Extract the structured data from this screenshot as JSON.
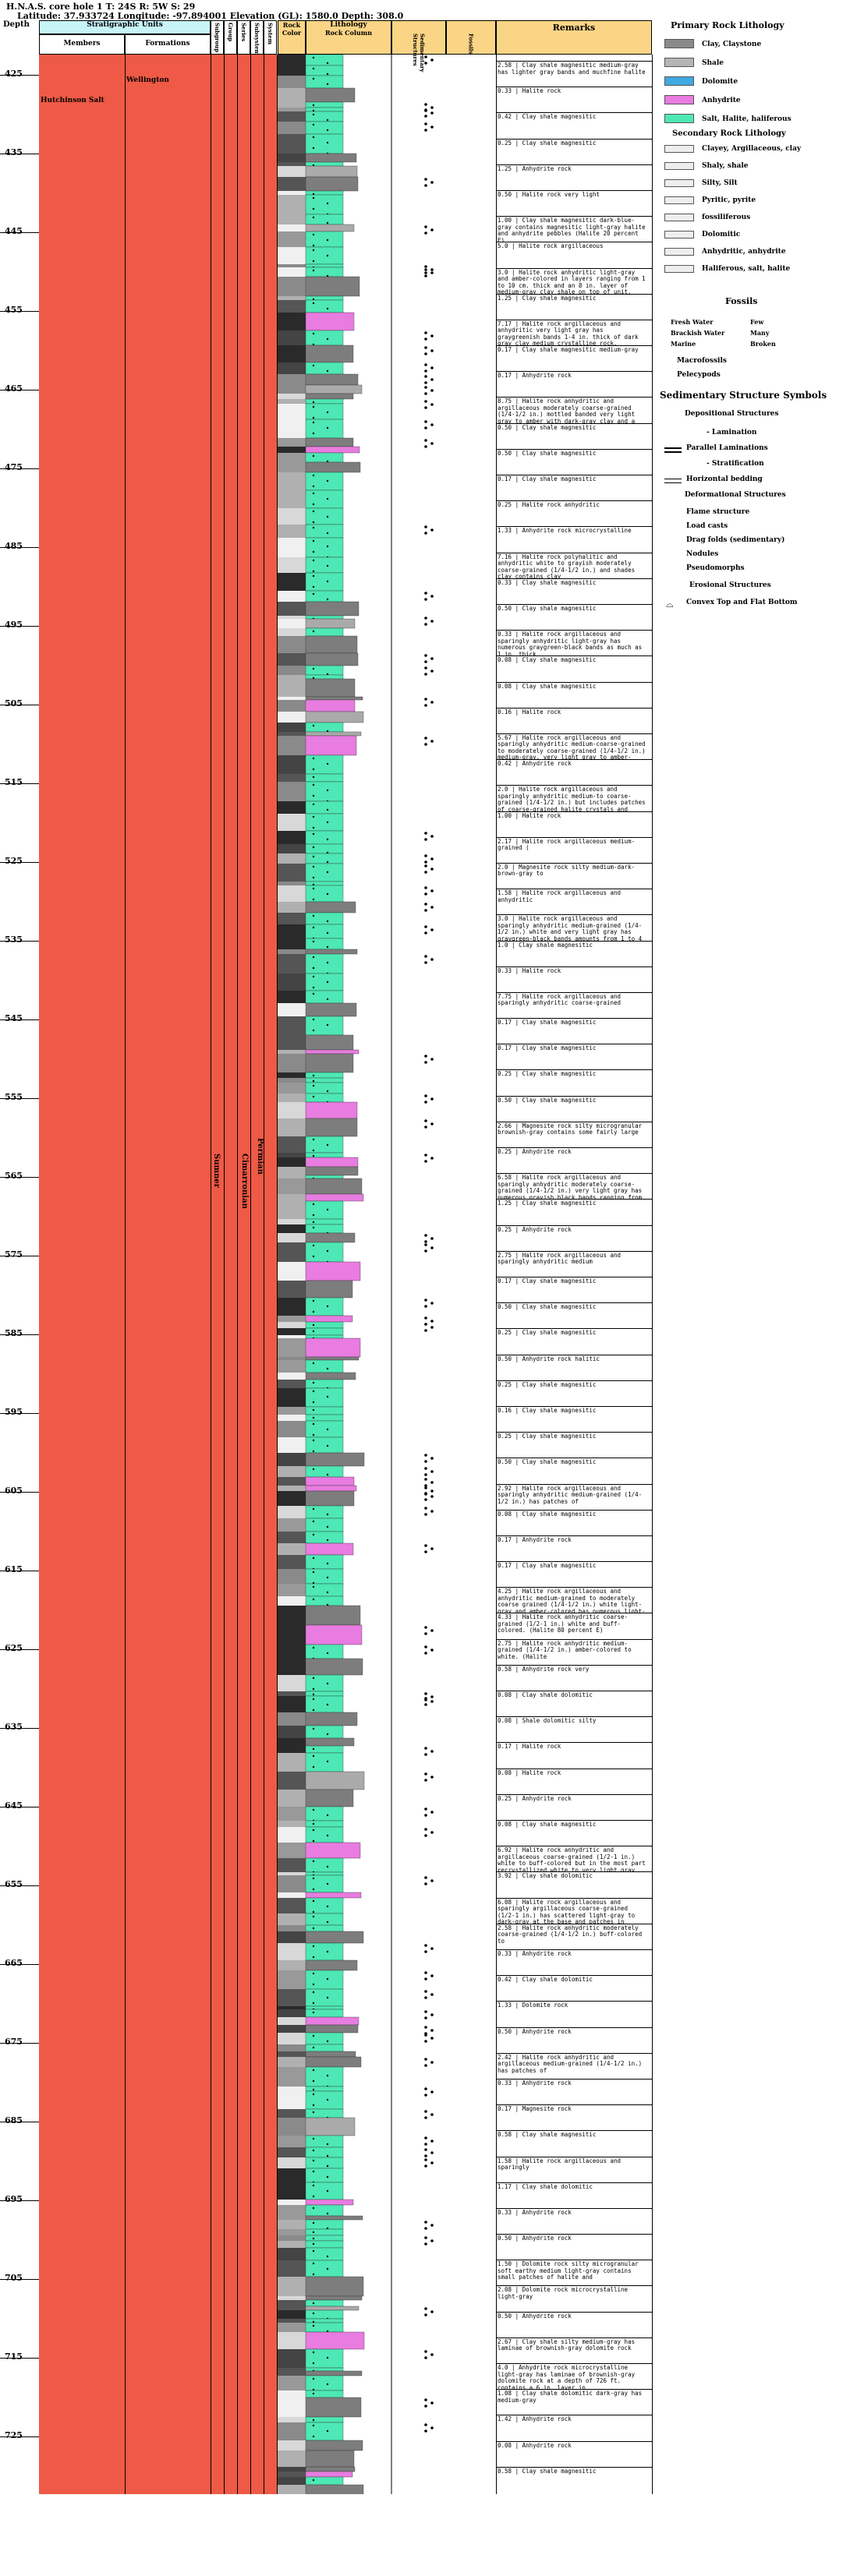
{
  "header": {
    "line1": "H.N.A.S. core hole 1 T: 24S R: 5W S: 29",
    "line2": "Latitude: 37.933724 Longitude: -97.894001 Elevation (GL): 1580.0 Depth: 308.0"
  },
  "columns": {
    "depth": "Depth",
    "strat_units": "Stratigraphic Units",
    "members": "Members",
    "formations": "Formations",
    "groups": [
      "Subgroup",
      "Group",
      "Series",
      "Subsystem",
      "System"
    ],
    "rock_color": "Rock Color",
    "lithology": "Lithology",
    "rock_column": "Rock Column",
    "sedimentary": "Sedimentary Structures",
    "fossils": "Fossils",
    "remarks": "Remarks"
  },
  "strat": {
    "wellington": "Wellington",
    "hutchinson": "Hutchinson Salt",
    "sumner": "Sumner",
    "cimarronian": "Cimarronian",
    "permian": "Permian"
  },
  "depths": [
    "425",
    "435",
    "445",
    "455",
    "465",
    "475",
    "485",
    "495",
    "505",
    "515",
    "525",
    "535",
    "545",
    "555",
    "565",
    "575",
    "585",
    "595",
    "605",
    "615",
    "625",
    "635",
    "645",
    "655",
    "665",
    "675",
    "685",
    "695",
    "705",
    "715",
    "725"
  ],
  "remarks": [
    "2.58 | Clay shale magnesitic medium-gray has lighter gray bands and muchfine halite",
    "0.33 | Halite rock",
    "0.42 | Clay shale magnesitic",
    "0.25 | Clay shale magnesitic",
    "1.25 | Anhydrite rock",
    "0.50 | Halite rock very light",
    "1.00 | Clay shale magnesitic dark-blue-gray contains magnesitic light-gray halite and anhydrite pebbles (Halite 20 percent E)",
    "5.0 | Halite rock argillaceous",
    "3.0 | Halite rock anhydritic light-gray and amber-colored in layers ranging from 1 to 10 cm. thick and an 8 in. layer of medium-gray clay shale on top of unit. (Halite 85 to 90 percent)",
    "1.25 | Clay shale magnesitic",
    "7.17 | Halite rock argillaceous and anhydritic very light gray has graygreenish bands 1-4 in. thick of dark gray clay medium crystalline rock. Contains scattered patches of anhydrite and halite in cracks and borders of rock (Halite 85 to 90 percent)",
    "0.17 | Clay shale magnesitic medium-gray",
    "0.17 | Anhydrite rock",
    "8.75 | Halite rock anhydritic and argillaceous moderately coarse-grained (1/4-1/2 in.) mottled banded very light gray to amber with dark-gray clay and a few gray-black bands contains anhydrite and shades colored halite contains clay. The upper 2 ft. has more clay. (Halite 85 percent E)",
    "0.50 | Clay shale magnesitic",
    "0.50 | Clay shale magnesitic",
    "0.17 | Clay shale magnesitic",
    "0.25 | Halite rock anhydritic",
    "1.33 | Anhydrite rock microcrystalline",
    "7.16 | Halite rock polyhalitic and anhydritic white to grayish moderately coarse-grained (1/4-1/2 in.) and shades clay contains clay",
    "0.33 | Clay shale magnesitic",
    "0.50 | Clay shale magnesitic",
    "0.33 | Halite rock argillaceous and sparingly anhydritic light-gray has numerous graygreen-black bands as much as 1 in. thick",
    "0.08 | Clay shale magnesitic",
    "0.08 | Clay shale magnesitic",
    "0.16 | Halite rock",
    "5.67 | Halite rock argillaceous and sparingly anhydritic medium-coarse-grained to moderately coarse-grained (1/4-1/2 in.) medium-gray, very light gray to amber-colored has numerous graygreen-black",
    "0.42 | Anhydrite rock",
    "2.0 | Halite rock argillaceous and sparingly anhydritic medium-to coarse-grained (1/4-1/2 in.) but includes patches of coarse-grained halite crystals and laminae, more gray of gray to light",
    "1.00 | Halite rock",
    "2.17 | Halite rock argillaceous medium-grained (",
    "2.0 | Magnesite rock silty medium-dark-brown-gray to",
    "1.58 | Halite rock argillaceous and anhydritic",
    "3.0 | Halite rock argillaceous and sparingly anhydritic medium-grained (1/4-1/2 in.) white and very light gray has graygreen-black bands amounts from 1 to 4 in. thick and 4-10 in. apart. (Halite 85 percent E)",
    "1.0 | Clay shale magnesitic",
    "0.33 | Halite rock",
    "7.75 | Halite rock argillaceous and sparingly anhydritic coarse-grained",
    "0.17 | Clay shale magnesitic",
    "0.17 | Clay shale magnesitic",
    "0.25 | Clay shale magnesitic",
    "0.50 | Clay shale magnesitic",
    "2.66 | Magnesite rock silty microgranular brownish-gray contains some fairly large",
    "0.25 | Anhydrite rock",
    "6.58 | Halite rock argillaceous and sparingly anhydritic moderately coarse-grained (1/4-1/2 in.) very light gray has numerous grayish black bands ranging from 1 to 4 in. in thickness and 4-10 in. apart. (Halite 85 percent E)",
    "1.25 | Clay shale magnesitic",
    "0.25 | Anhydrite rock",
    "2.75 | Halite rock argillaceous and sparingly anhydritic medium",
    "0.17 | Clay shale magnesitic",
    "0.50 | Clay shale magnesitic",
    "0.25 | Clay shale magnesitic",
    "0.50 | Anhydrite rock halitic",
    "0.25 | Clay shale magnesitic",
    "0.16 | Clay shale magnesitic",
    "0.25 | Clay shale magnesitic",
    "0.50 | Clay shale magnesitic",
    "2.92 | Halite rock argillaceous and sparingly anhydritic medium-grained (1/4-1/2 in.) has patches of",
    "0.08 | Clay shale magnesitic",
    "0.17 | Anhydrite rock",
    "0.17 | Clay shale magnesitic",
    "4.25 | Halite rock argillaceous and anhydritic medium-grained to moderately coarse grained (1/4-1/2 in.) white light-gray and amber-colored has numerous light-gray, amber grayish-black bands 1/4-1/2 in. and laminae one-fourth inch thick and from 2-4 in. apart (Halite 85-87 percent E)",
    "4.33 | Halite rock anhydritic coarse-grained (1/2-1 in.) white and buff-colored. (Halite 80 percent E)",
    "2.75 | Halite rock anhydritic medium-grained (1/4-1/2 in.) amber-colored to white. (Halite",
    "0.58 | Anhydrite rock very",
    "0.08 | Clay shale dolomitic",
    "0.08 | Shale dolomitic silty",
    "0.17 | Halite rock",
    "0.08 | Halite rock",
    "0.25 | Anhydrite rock",
    "0.08 | Clay shale magnesitic",
    "6.92 | Halite rock anhydritic and argillaceous coarse-grained (1/2-1 in.) white to buff-colored but in the most part recrystallized white to very light gray has a few amber-colored crystals and a few gray-black bands. (Halite 87 percent E)",
    "3.92 | Clay shale dolomitic",
    "6.08 | Halite rock argillaceous and sparingly argillaceous coarse-grained (1/2-1 in.) has scattered light-gray to dark-gray at the base and patches in places. (Halite 85 percent E)",
    "2.58 | Halite rock anhydritic moderately coarse-grained (1/4-1/2 in.) buff-colored to",
    "0.33 | Anhydrite rock",
    "0.42 | Clay shale dolomitic",
    "1.33 | Dolomite rock",
    "0.50 | Anhydrite rock",
    "2.42 | Halite rock anhydritic and argillaceous medium-grained (1/4-1/2 in.) has patches of",
    "0.33 | Anhydrite rock",
    "0.17 | Magnesite rock",
    "0.58 | Clay shale magnesitic",
    "1.58 | Halite rock argillaceous and sparingly",
    "1.17 | Clay shale dolomitic",
    "0.33 | Anhydrite rock",
    "0.50 | Anhydrite rock",
    "1.50 | Dolomite rock silty microgranular soft earthy medium light-gray contains small patches of halite and",
    "2.08 | Dolomite rock microcrystalline light-gray",
    "0.50 | Anhydrite rock",
    "2.67 | Clay shale silty medium-gray has laminae of brownish-gray dolomite rock",
    "4.0 | Anhydrite rock microcrystalline light-gray has laminae of brownish-gray dolomite rock at a depth of 726 ft. contains a 6 in. layer in",
    "1.08 | Clay shale dolomitic dark-gray has medium-gray",
    "1.42 | Anhydrite rock",
    "0.08 | Anhydrite rock",
    "0.58 | Clay shale magnesitic"
  ],
  "legend": {
    "primary_title": "Primary Rock Lithology",
    "primary": [
      {
        "label": "Clay, Claystone",
        "color": "#8a8a8a"
      },
      {
        "label": "Shale",
        "color": "#b5b5b5"
      },
      {
        "label": "Dolomite",
        "color": "#3fa9e0"
      },
      {
        "label": "Anhydrite",
        "color": "#e87ce0"
      },
      {
        "label": "Salt, Halite, haliferous",
        "color": "#4de8b5"
      }
    ],
    "secondary_title": "Secondary Rock Lithology",
    "secondary": [
      "Clayey, Argillaceous, clay",
      "Shaly, shale",
      "Silty, Silt",
      "Pyritic, pyrite",
      "fossiliferous",
      "Dolomitic",
      "Anhydritic, anhydrite",
      "Haliferous, salt, halite"
    ],
    "fossils_title": "Fossils",
    "fossils": [
      "Fresh Water",
      "Brackish Water",
      "Marine"
    ],
    "fossil_abund": [
      "Few",
      "Many",
      "Broken"
    ],
    "fossil_types": [
      "Macrofossils",
      "Pelecypods"
    ],
    "sed_title": "Sedimentary Structure Symbols",
    "dep_title": "Depositional Structures",
    "lamination": "Lamination",
    "parallel": "Parallel Laminations",
    "stratification": "Stratification",
    "horizontal": "Horizontal bedding",
    "def_title": "Deformational Structures",
    "deformational": [
      "Flame structure",
      "Load casts",
      "Drag folds (sedimentary)",
      "Nodules",
      "Pseudomorphs"
    ],
    "ero_title": "Erosional Structures",
    "convex": "Convex Top and Flat Bottom"
  }
}
